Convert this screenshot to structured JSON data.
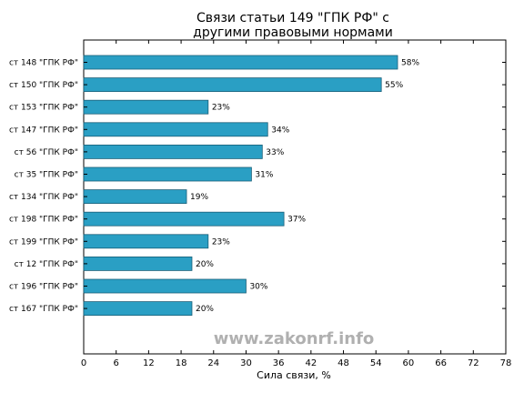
{
  "chart_data": {
    "type": "bar",
    "orientation": "horizontal",
    "title_lines": [
      "Связи статьи 149 \"ГПК РФ\" с",
      "другими правовыми нормами"
    ],
    "xlabel": "Сила связи, %",
    "ylabel": "",
    "xlim": [
      0,
      78
    ],
    "xticks": [
      0,
      6,
      12,
      18,
      24,
      30,
      36,
      42,
      48,
      54,
      60,
      66,
      72,
      78
    ],
    "grid": false,
    "legend": "none",
    "categories": [
      "ст 148 \"ГПК РФ\"",
      "ст 150 \"ГПК РФ\"",
      "ст 153 \"ГПК РФ\"",
      "ст 147 \"ГПК РФ\"",
      "ст 56 \"ГПК РФ\"",
      "ст 35 \"ГПК РФ\"",
      "ст 134 \"ГПК РФ\"",
      "ст 198 \"ГПК РФ\"",
      "ст 199 \"ГПК РФ\"",
      "ст 12 \"ГПК РФ\"",
      "ст 196 \"ГПК РФ\"",
      "ст 167 \"ГПК РФ\""
    ],
    "values": [
      58,
      55,
      23,
      34,
      33,
      31,
      19,
      37,
      23,
      20,
      30,
      20
    ],
    "value_labels": [
      "58%",
      "55%",
      "23%",
      "34%",
      "33%",
      "31%",
      "19%",
      "37%",
      "23%",
      "20%",
      "30%",
      "20%"
    ],
    "bar_color": "#2a9fc4",
    "bar_edge_color": "#1a5f78"
  },
  "watermark": "www.zakonrf.info"
}
